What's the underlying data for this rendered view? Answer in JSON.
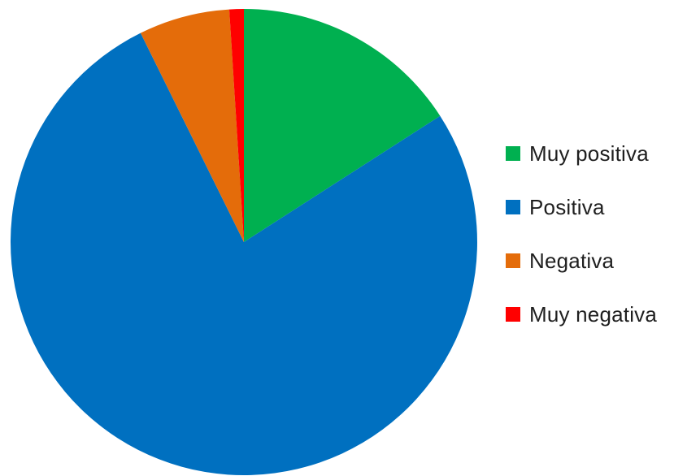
{
  "chart_data": {
    "type": "pie",
    "start_angle_deg": 0,
    "direction": "clockwise",
    "legend_position": "right",
    "series": [
      {
        "name": "Muy positiva",
        "value": 15.9,
        "color": "#00b050"
      },
      {
        "name": "Positiva",
        "value": 76.8,
        "color": "#0070c0"
      },
      {
        "name": "Negativa",
        "value": 6.3,
        "color": "#e46c0a"
      },
      {
        "name": "Muy negativa",
        "value": 1.0,
        "color": "#ff0000"
      }
    ]
  }
}
